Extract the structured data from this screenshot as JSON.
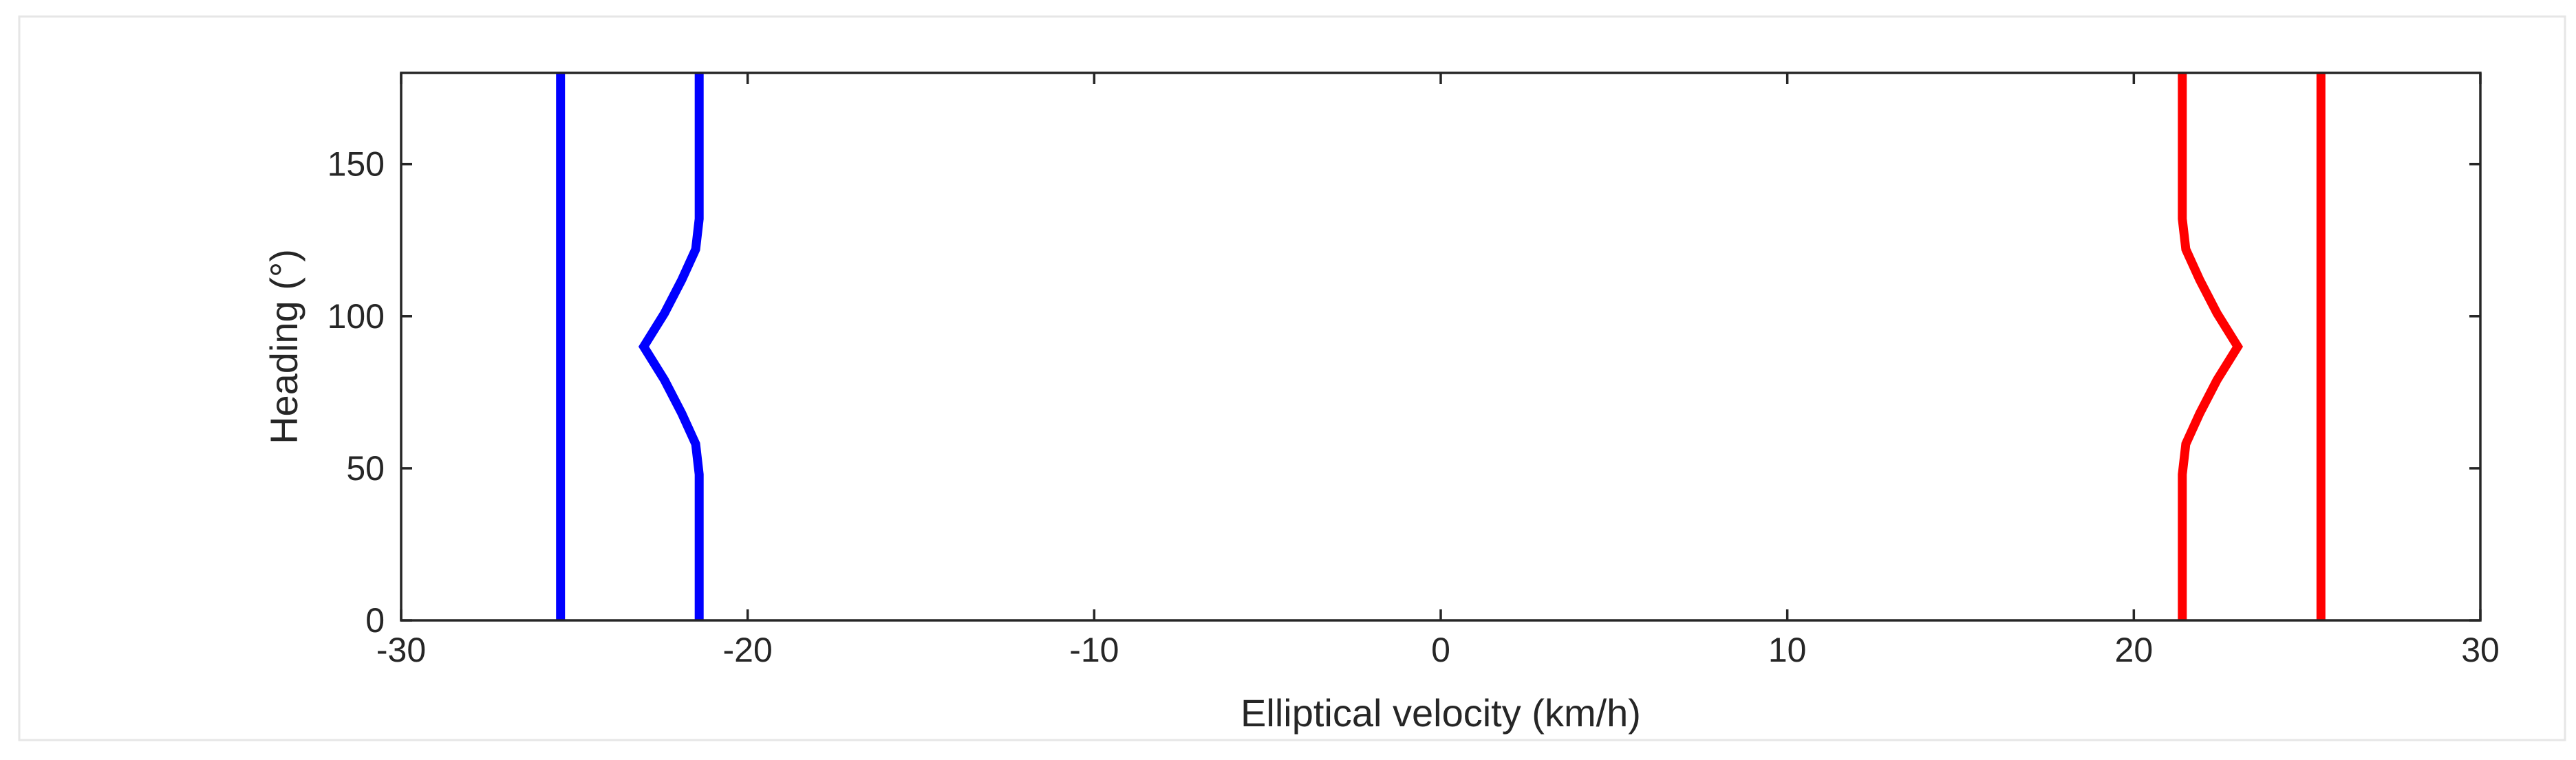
{
  "chart_data": {
    "type": "line",
    "title": "",
    "xlabel": "Elliptical velocity (km/h)",
    "ylabel": "Heading (°)",
    "xlim": [
      -30,
      30
    ],
    "ylim": [
      0,
      180
    ],
    "xticks": [
      -30,
      -20,
      -10,
      0,
      10,
      20,
      30
    ],
    "yticks": [
      0,
      50,
      100,
      150
    ],
    "grid": false,
    "legend": "none",
    "series": [
      {
        "color": "#0000ff",
        "points": [
          [
            -25.4,
            0
          ],
          [
            -25.4,
            180
          ]
        ]
      },
      {
        "color": "#0000ff",
        "points": [
          [
            -21.4,
            0
          ],
          [
            -21.4,
            48
          ],
          [
            -21.5,
            58
          ],
          [
            -21.9,
            68
          ],
          [
            -22.4,
            79
          ],
          [
            -23.0,
            90
          ],
          [
            -22.4,
            101
          ],
          [
            -21.9,
            112
          ],
          [
            -21.5,
            122
          ],
          [
            -21.4,
            132
          ],
          [
            -21.4,
            180
          ]
        ]
      },
      {
        "color": "#ff0000",
        "points": [
          [
            21.4,
            0
          ],
          [
            21.4,
            48
          ],
          [
            21.5,
            58
          ],
          [
            21.9,
            68
          ],
          [
            22.4,
            79
          ],
          [
            23.0,
            90
          ],
          [
            22.4,
            101
          ],
          [
            21.9,
            112
          ],
          [
            21.5,
            122
          ],
          [
            21.4,
            132
          ],
          [
            21.4,
            180
          ]
        ]
      },
      {
        "color": "#ff0000",
        "points": [
          [
            25.4,
            0
          ],
          [
            25.4,
            180
          ]
        ]
      }
    ]
  }
}
